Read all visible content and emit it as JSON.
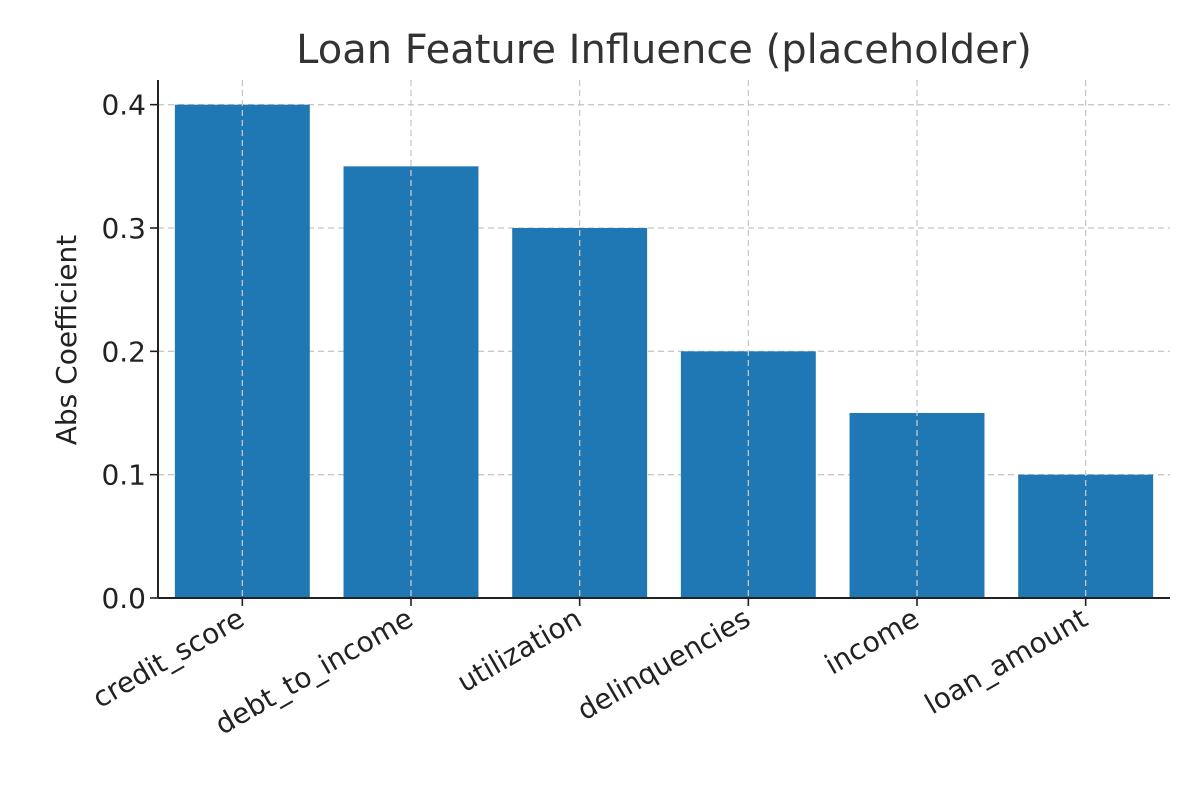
{
  "chart_data": {
    "type": "bar",
    "title": "Loan Feature Influence (placeholder)",
    "xlabel": "",
    "ylabel": "Abs Coefficient",
    "categories": [
      "credit_score",
      "debt_to_income",
      "utilization",
      "delinquencies",
      "income",
      "loan_amount"
    ],
    "values": [
      0.4,
      0.35,
      0.3,
      0.2,
      0.15,
      0.1
    ],
    "ylim": [
      0,
      0.42
    ],
    "yticks": [
      0.0,
      0.1,
      0.2,
      0.3,
      0.4
    ],
    "ytick_labels": [
      "0.0",
      "0.1",
      "0.2",
      "0.3",
      "0.4"
    ],
    "grid": true,
    "legend": "none",
    "colors": {
      "bar": "#1f77b4",
      "grid": "#c8c8c8",
      "axis": "#222222"
    }
  }
}
